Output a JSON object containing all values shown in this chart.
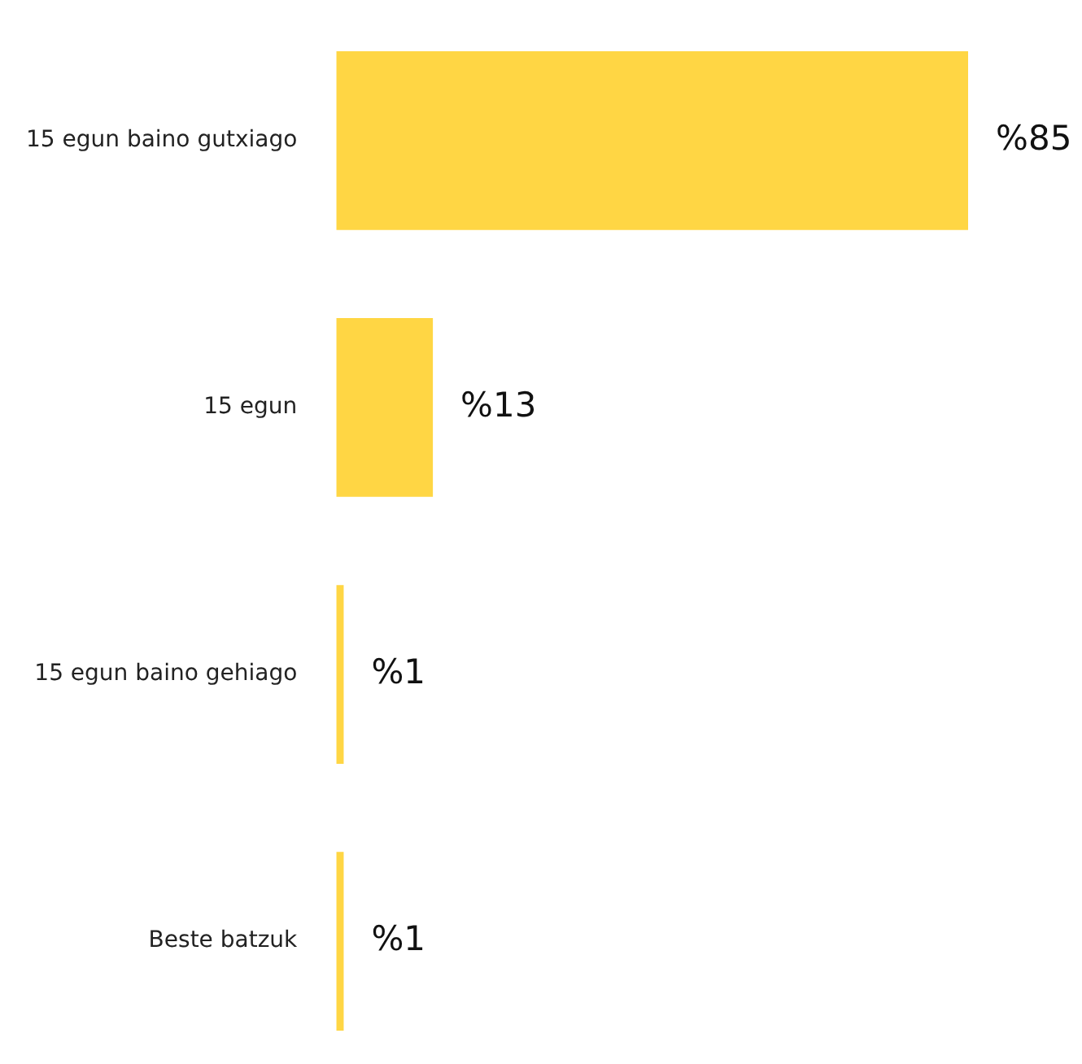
{
  "chart_data": {
    "type": "bar",
    "orientation": "horizontal",
    "categories": [
      "15 egun baino gutxiago",
      "15 egun",
      "15 egun baino gehiago",
      "Beste batzuk"
    ],
    "values": [
      85,
      13,
      1,
      1
    ],
    "color": "#ffd644",
    "value_labels": [
      "%85",
      "%13",
      "%1",
      "%1"
    ],
    "legend": false
  }
}
